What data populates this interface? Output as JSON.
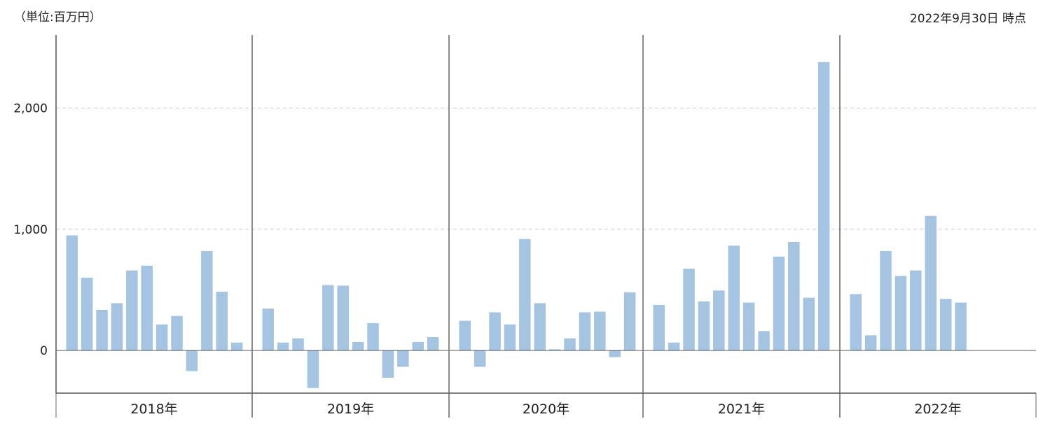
{
  "header": {
    "unit_label": "（単位:百万円）",
    "as_of": "2022年9月30日 時点"
  },
  "chart_data": {
    "type": "bar",
    "title": "",
    "xlabel": "",
    "ylabel": "",
    "ylim": [
      -360,
      2600
    ],
    "yticks": [
      0,
      1000,
      2000
    ],
    "ytick_labels": [
      "0",
      "1,000",
      "2,000"
    ],
    "grid": true,
    "bar_color": "#a4c4e2",
    "groups": [
      {
        "label": "2018年",
        "values": [
          950,
          600,
          335,
          390,
          660,
          700,
          215,
          285,
          -170,
          820,
          485,
          65
        ]
      },
      {
        "label": "2019年",
        "values": [
          345,
          65,
          100,
          -310,
          540,
          535,
          70,
          225,
          -225,
          -135,
          70,
          110
        ]
      },
      {
        "label": "2020年",
        "values": [
          245,
          -135,
          315,
          215,
          920,
          390,
          10,
          100,
          315,
          320,
          -55,
          480
        ]
      },
      {
        "label": "2021年",
        "values": [
          375,
          65,
          675,
          405,
          495,
          865,
          395,
          160,
          775,
          895,
          435,
          2380
        ]
      },
      {
        "label": "2022年",
        "values": [
          465,
          125,
          820,
          615,
          660,
          1110,
          425,
          395
        ]
      }
    ]
  }
}
